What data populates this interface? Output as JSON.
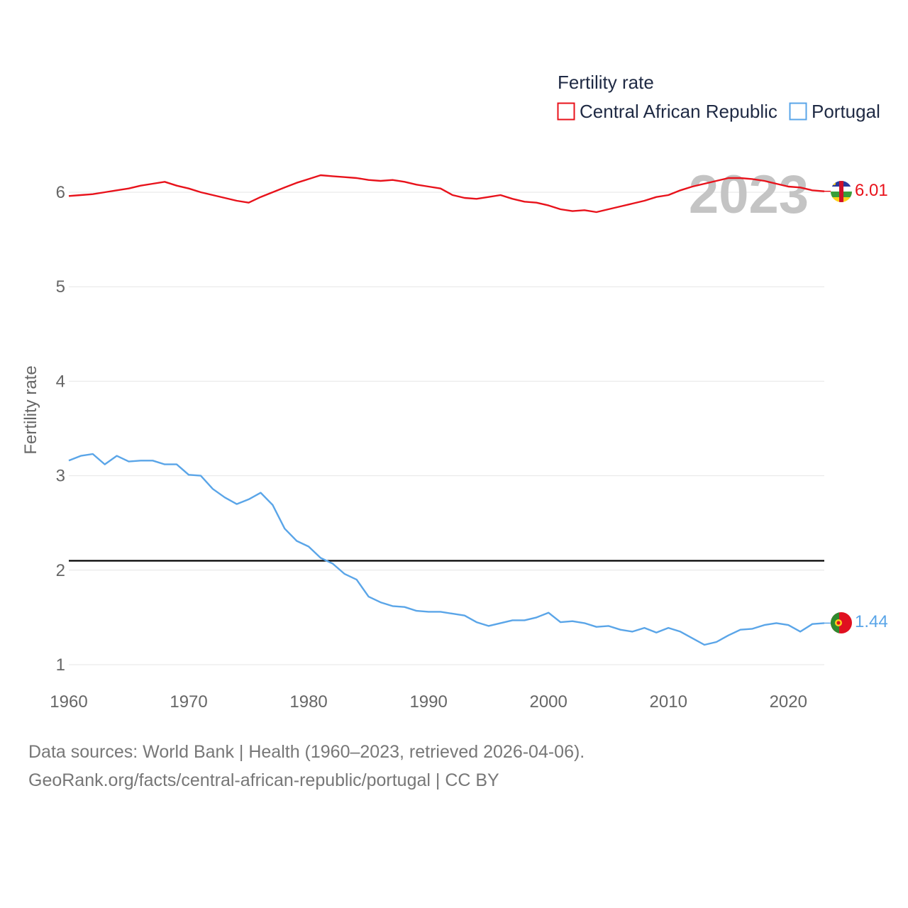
{
  "chart_data": {
    "type": "line",
    "title": "",
    "legend_title": "Fertility rate",
    "ylabel": "Fertility rate",
    "xlabel": "",
    "x_ticks": [
      1960,
      1970,
      1980,
      1990,
      2000,
      2010,
      2020
    ],
    "y_ticks": [
      1,
      2,
      3,
      4,
      5,
      6
    ],
    "xlim": [
      1960,
      2023
    ],
    "ylim": [
      0.9,
      6.7
    ],
    "grid": true,
    "legend_position": "top-right",
    "year_label": "2023",
    "reference_line": {
      "value": 2.1,
      "color": "#000000"
    },
    "x": [
      1960,
      1961,
      1962,
      1963,
      1964,
      1965,
      1966,
      1967,
      1968,
      1969,
      1970,
      1971,
      1972,
      1973,
      1974,
      1975,
      1976,
      1977,
      1978,
      1979,
      1980,
      1981,
      1982,
      1983,
      1984,
      1985,
      1986,
      1987,
      1988,
      1989,
      1990,
      1991,
      1992,
      1993,
      1994,
      1995,
      1996,
      1997,
      1998,
      1999,
      2000,
      2001,
      2002,
      2003,
      2004,
      2005,
      2006,
      2007,
      2008,
      2009,
      2010,
      2011,
      2012,
      2013,
      2014,
      2015,
      2016,
      2017,
      2018,
      2019,
      2020,
      2021,
      2022,
      2023
    ],
    "series": [
      {
        "name": "Central African Republic",
        "color": "#e8121b",
        "end_label": "6.01",
        "values": [
          5.96,
          5.97,
          5.98,
          6.0,
          6.02,
          6.04,
          6.07,
          6.09,
          6.11,
          6.07,
          6.04,
          6.0,
          5.97,
          5.94,
          5.91,
          5.89,
          5.95,
          6.0,
          6.05,
          6.1,
          6.14,
          6.18,
          6.17,
          6.16,
          6.15,
          6.13,
          6.12,
          6.13,
          6.11,
          6.08,
          6.06,
          6.04,
          5.97,
          5.94,
          5.93,
          5.95,
          5.97,
          5.93,
          5.9,
          5.89,
          5.86,
          5.82,
          5.8,
          5.81,
          5.79,
          5.82,
          5.85,
          5.88,
          5.91,
          5.95,
          5.97,
          6.02,
          6.06,
          6.09,
          6.12,
          6.15,
          6.15,
          6.14,
          6.12,
          6.09,
          6.06,
          6.05,
          6.02,
          6.01
        ]
      },
      {
        "name": "Portugal",
        "color": "#5aa5e8",
        "end_label": "1.44",
        "values": [
          3.16,
          3.21,
          3.23,
          3.12,
          3.21,
          3.15,
          3.16,
          3.16,
          3.12,
          3.12,
          3.01,
          3.0,
          2.86,
          2.77,
          2.7,
          2.75,
          2.82,
          2.69,
          2.44,
          2.31,
          2.25,
          2.13,
          2.07,
          1.96,
          1.9,
          1.72,
          1.66,
          1.62,
          1.61,
          1.57,
          1.56,
          1.56,
          1.54,
          1.52,
          1.45,
          1.41,
          1.44,
          1.47,
          1.47,
          1.5,
          1.55,
          1.45,
          1.46,
          1.44,
          1.4,
          1.41,
          1.37,
          1.35,
          1.39,
          1.34,
          1.39,
          1.35,
          1.28,
          1.21,
          1.24,
          1.31,
          1.37,
          1.38,
          1.42,
          1.44,
          1.42,
          1.35,
          1.43,
          1.44
        ]
      }
    ]
  },
  "footer": {
    "line1": "Data sources: World Bank | Health (1960–2023, retrieved 2026-04-06).",
    "line2": "GeoRank.org/facts/central-african-republic/portugal | CC BY"
  },
  "flags": {
    "central_african_republic": "car-flag-icon",
    "portugal": "portugal-flag-icon"
  }
}
